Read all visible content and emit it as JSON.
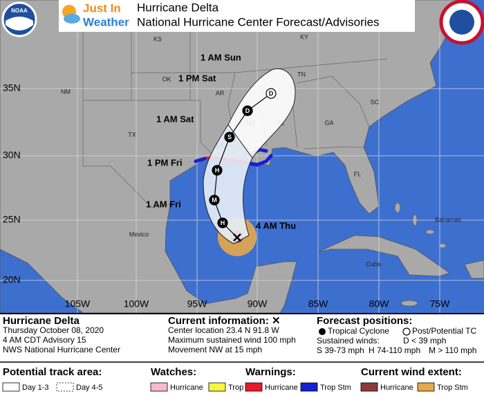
{
  "header": {
    "brand": [
      "Just In",
      "Weather"
    ],
    "title": "Hurricane Delta",
    "subtitle": "National Hurricane Center Forecast/Advisories",
    "logo": "NOAA"
  },
  "map": {
    "lat_labels": [
      "35N",
      "30N",
      "25N",
      "20N"
    ],
    "lon_labels": [
      "105W",
      "100W",
      "95W",
      "90W",
      "85W",
      "80W",
      "75W"
    ],
    "places": [
      "KS",
      "KY",
      "OK",
      "TN",
      "NM",
      "AR",
      "SC",
      "MS",
      "AL",
      "GA",
      "TX",
      "LA",
      "FL",
      "Mexico",
      "Bahamas",
      "Cuba"
    ],
    "current_time": "4 AM Thu",
    "forecast_points": [
      {
        "code": "H"
      },
      {
        "time": "1 AM Fri",
        "code": "M"
      },
      {
        "time": "1 PM Fri",
        "code": "H"
      },
      {
        "time": "1 AM Sat",
        "code": "S"
      },
      {
        "time": "1 PM Sat",
        "code": "D"
      },
      {
        "time": "1 AM Sun",
        "code": "D"
      }
    ]
  },
  "info": {
    "storm": {
      "name": "Hurricane Delta",
      "lines": [
        "Thursday October 08, 2020",
        "4 AM CDT Advisory 15",
        "NWS National Hurricane Center"
      ]
    },
    "current": {
      "heading": "Current information: ✕",
      "lines": [
        "Center location 23.4 N 91.8 W",
        "Maximum sustained wind 100 mph",
        "Movement NW at 15 mph"
      ]
    },
    "forecast": {
      "heading": "Forecast positions:",
      "tropical": "Tropical Cyclone",
      "post": "Post/Potential TC",
      "winds_label": "Sustained winds:",
      "d": "D < 39 mph",
      "s": "S 39-73 mph",
      "h": "H 74-110 mph",
      "m": "M > 110 mph"
    }
  },
  "legend": {
    "track": {
      "heading": "Potential track area:",
      "items": [
        "Day 1-3",
        "Day 4-5"
      ]
    },
    "watches": {
      "heading": "Watches:",
      "items": [
        "Hurricane",
        "Trop Stm"
      ]
    },
    "warnings": {
      "heading": "Warnings:",
      "items": [
        "Hurricane",
        "Trop Stm"
      ]
    },
    "wind": {
      "heading": "Current wind extent:",
      "items": [
        "Hurricane",
        "Trop Stm"
      ]
    }
  }
}
